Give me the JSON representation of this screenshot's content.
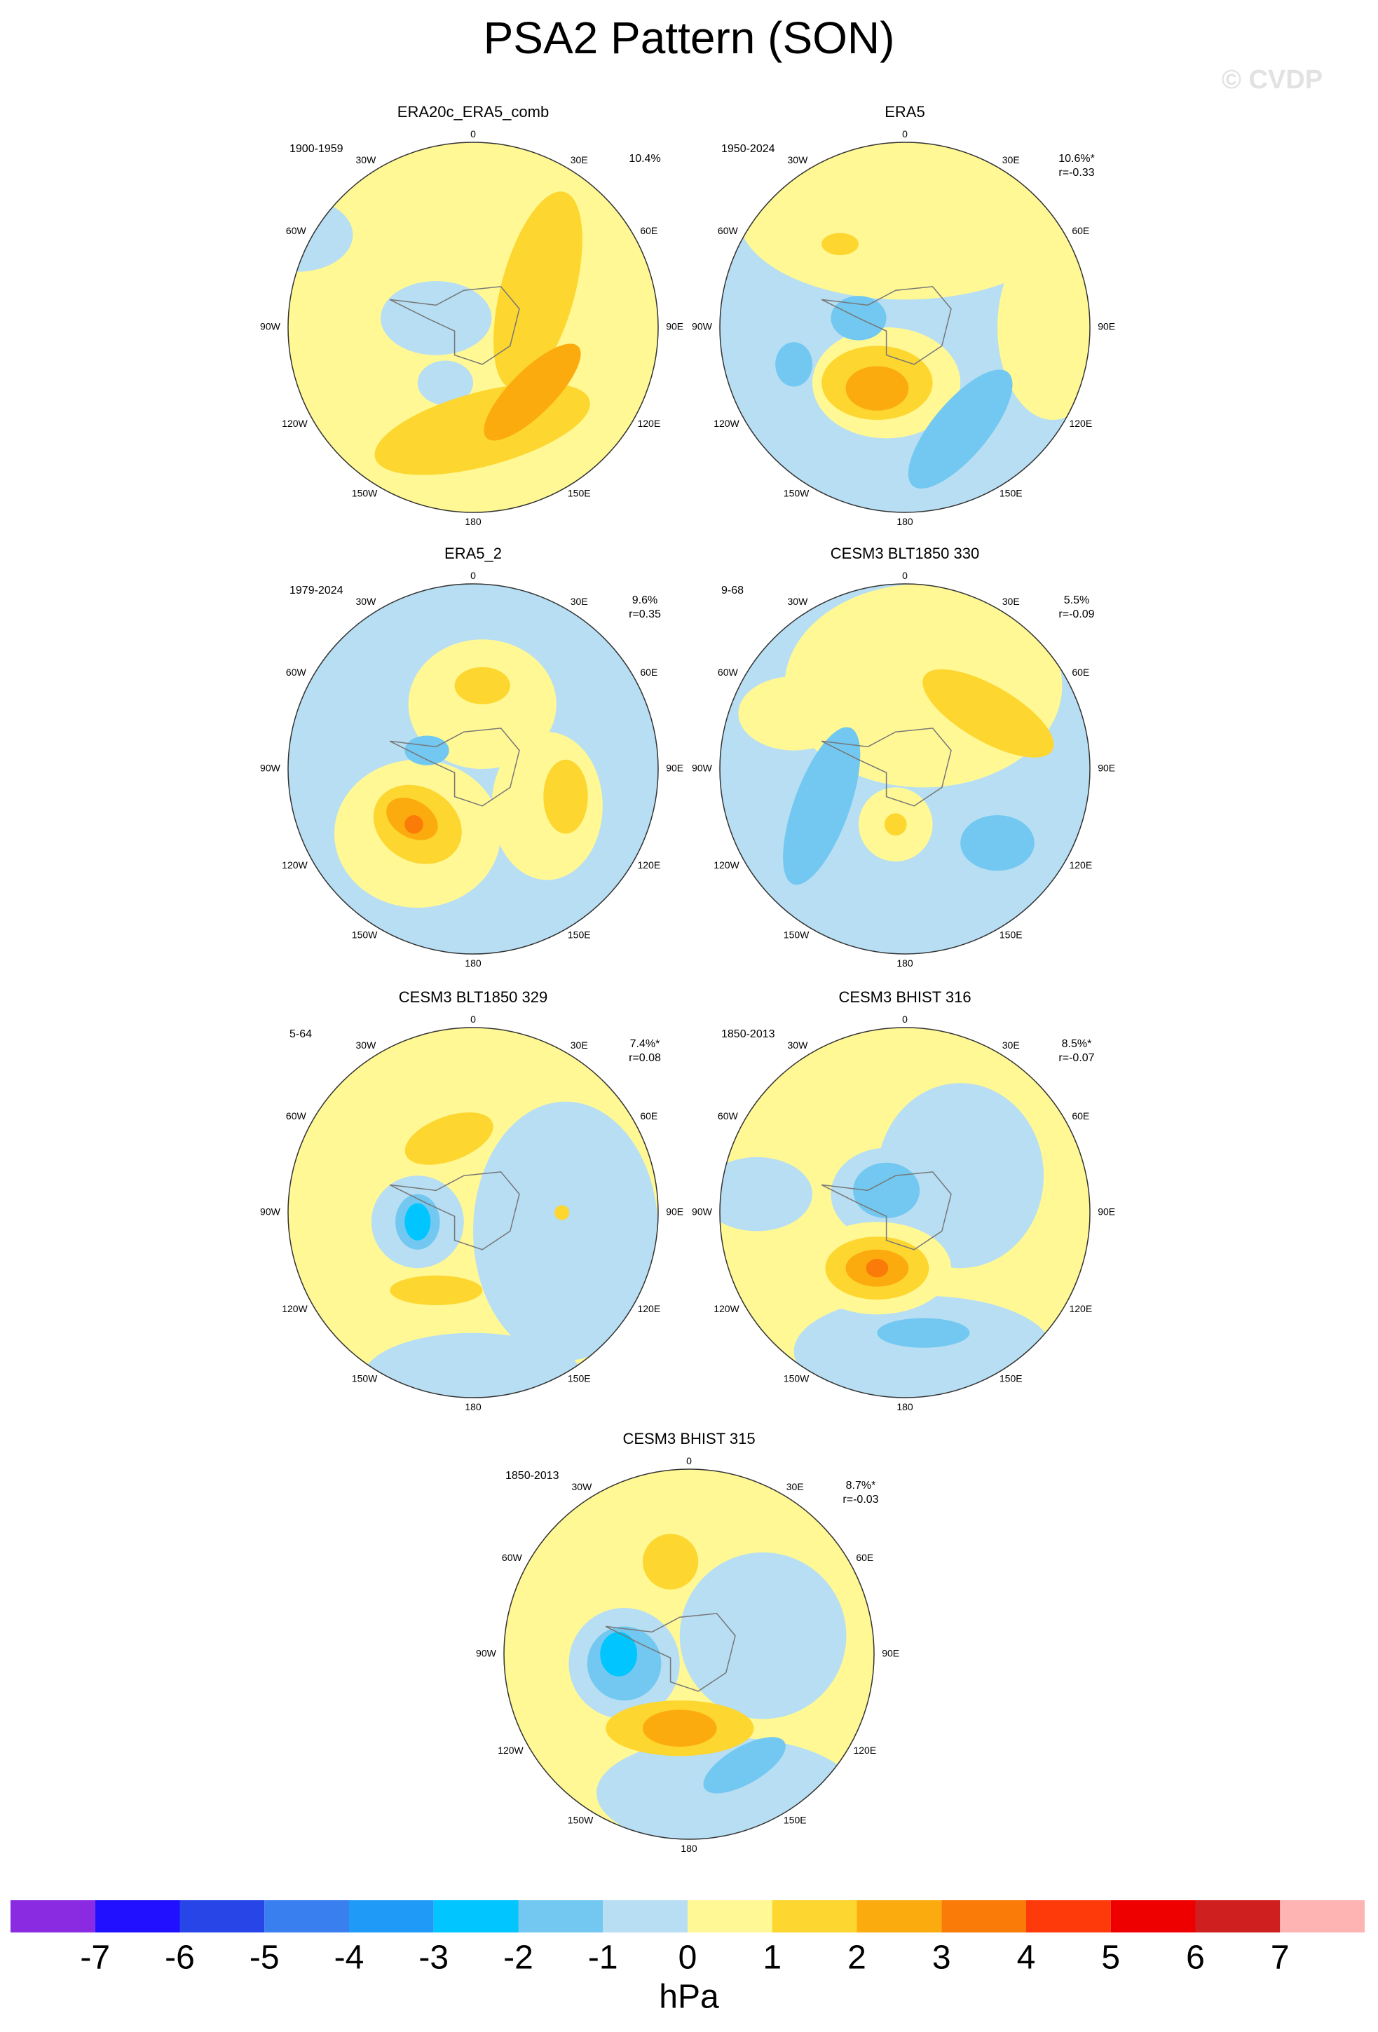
{
  "title": "PSA2 Pattern (SON)",
  "watermark": "© CVDP",
  "lon_labels": [
    "0",
    "30E",
    "60E",
    "90E",
    "120E",
    "150E",
    "180",
    "150W",
    "120W",
    "90W",
    "60W",
    "30W"
  ],
  "panels": [
    {
      "title": "ERA20c_ERA5_comb",
      "period": "1900-1959",
      "stats": [
        "10.4%"
      ]
    },
    {
      "title": "ERA5",
      "period": "1950-2024",
      "stats": [
        "10.6%*",
        "r=-0.33"
      ]
    },
    {
      "title": "ERA5_2",
      "period": "1979-2024",
      "stats": [
        "9.6%",
        "r=0.35"
      ]
    },
    {
      "title": "CESM3 BLT1850 330",
      "period": "9-68",
      "stats": [
        "5.5%",
        "r=-0.09"
      ]
    },
    {
      "title": "CESM3 BLT1850 329",
      "period": "5-64",
      "stats": [
        "7.4%*",
        "r=0.08"
      ]
    },
    {
      "title": "CESM3 BHIST 316",
      "period": "1850-2013",
      "stats": [
        "8.5%*",
        "r=-0.07"
      ]
    },
    {
      "title": "CESM3 BHIST 315",
      "period": "1850-2013",
      "stats": [
        "8.7%*",
        "r=-0.03"
      ]
    }
  ],
  "colorbar": {
    "colors": [
      "#8a2be2",
      "#2010ff",
      "#2846e8",
      "#3a7fef",
      "#1f9bf7",
      "#00c5ff",
      "#72c8f0",
      "#b7def3",
      "#fff895",
      "#fdd62f",
      "#fcab0e",
      "#fb7b08",
      "#ff3a0a",
      "#ef0000",
      "#cf1f1f",
      "#ffb4b4"
    ],
    "ticks": [
      -7,
      -6,
      -5,
      -4,
      -3,
      -2,
      -1,
      0,
      1,
      2,
      3,
      4,
      5,
      6,
      7
    ],
    "unit": "hPa"
  }
}
